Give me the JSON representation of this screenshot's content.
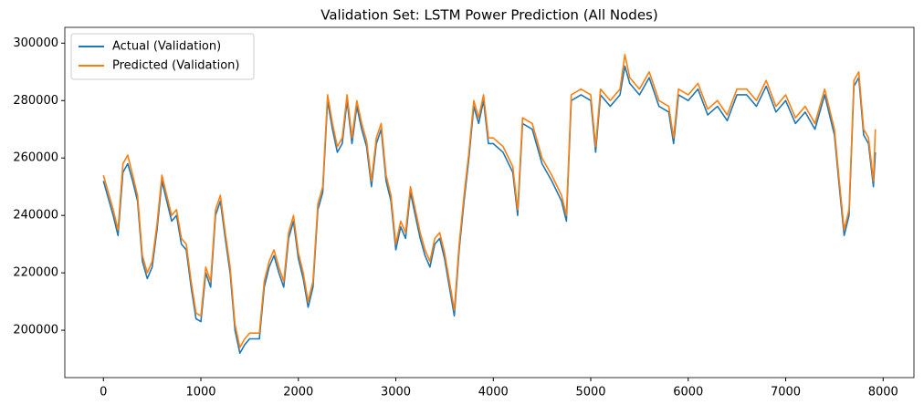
{
  "chart_data": {
    "type": "line",
    "title": "Validation Set: LSTM Power Prediction (All Nodes)",
    "x": [
      0,
      100,
      150,
      200,
      250,
      300,
      350,
      400,
      450,
      500,
      550,
      600,
      650,
      700,
      750,
      800,
      850,
      900,
      950,
      1000,
      1050,
      1100,
      1150,
      1200,
      1250,
      1300,
      1350,
      1400,
      1450,
      1500,
      1600,
      1650,
      1700,
      1750,
      1800,
      1850,
      1900,
      1950,
      2000,
      2050,
      2100,
      2150,
      2200,
      2250,
      2300,
      2350,
      2400,
      2450,
      2500,
      2550,
      2600,
      2650,
      2700,
      2750,
      2800,
      2850,
      2900,
      2950,
      3000,
      3050,
      3100,
      3150,
      3200,
      3250,
      3300,
      3350,
      3400,
      3450,
      3500,
      3550,
      3600,
      3650,
      3700,
      3750,
      3800,
      3850,
      3900,
      3950,
      4000,
      4100,
      4200,
      4250,
      4300,
      4400,
      4500,
      4600,
      4700,
      4750,
      4800,
      4900,
      5000,
      5050,
      5100,
      5200,
      5300,
      5350,
      5400,
      5500,
      5600,
      5700,
      5800,
      5850,
      5900,
      6000,
      6100,
      6200,
      6300,
      6400,
      6500,
      6600,
      6700,
      6800,
      6900,
      7000,
      7100,
      7200,
      7300,
      7400,
      7500,
      7550,
      7600,
      7650,
      7700,
      7750,
      7800,
      7850,
      7900,
      7920
    ],
    "series": [
      {
        "name": "Actual (Validation)",
        "color": "#1f77b4",
        "values": [
          252000,
          240000,
          233000,
          255000,
          258000,
          252000,
          245000,
          224000,
          218000,
          222000,
          235000,
          252000,
          245000,
          238000,
          240000,
          230000,
          228000,
          215000,
          204000,
          203000,
          220000,
          215000,
          240000,
          245000,
          232000,
          220000,
          200000,
          192000,
          195000,
          197000,
          197000,
          215000,
          222000,
          226000,
          220000,
          215000,
          232000,
          238000,
          225000,
          218000,
          208000,
          215000,
          242000,
          248000,
          280000,
          270000,
          262000,
          265000,
          280000,
          265000,
          278000,
          270000,
          264000,
          250000,
          265000,
          270000,
          252000,
          245000,
          228000,
          236000,
          232000,
          248000,
          240000,
          232000,
          226000,
          222000,
          230000,
          232000,
          225000,
          215000,
          205000,
          228000,
          245000,
          260000,
          278000,
          272000,
          280000,
          265000,
          265000,
          262000,
          255000,
          240000,
          272000,
          270000,
          258000,
          252000,
          245000,
          238000,
          280000,
          282000,
          280000,
          262000,
          282000,
          278000,
          282000,
          292000,
          286000,
          282000,
          288000,
          278000,
          276000,
          265000,
          282000,
          280000,
          284000,
          275000,
          278000,
          273000,
          282000,
          282000,
          278000,
          285000,
          276000,
          280000,
          272000,
          276000,
          270000,
          282000,
          268000,
          250000,
          233000,
          240000,
          285000,
          288000,
          268000,
          265000,
          250000,
          262000
        ]
      },
      {
        "name": "Predicted (Validation)",
        "color": "#ff7f0e",
        "values": [
          254000,
          242000,
          235000,
          258000,
          261000,
          254000,
          247000,
          226000,
          220000,
          224000,
          237000,
          254000,
          247000,
          240000,
          242000,
          232000,
          230000,
          217000,
          206000,
          205000,
          222000,
          217000,
          242000,
          247000,
          234000,
          222000,
          202000,
          194000,
          197000,
          199000,
          199000,
          217000,
          224000,
          228000,
          222000,
          217000,
          234000,
          240000,
          227000,
          220000,
          210000,
          217000,
          244000,
          250000,
          282000,
          272000,
          264000,
          267000,
          282000,
          267000,
          280000,
          272000,
          266000,
          252000,
          267000,
          272000,
          254000,
          247000,
          230000,
          238000,
          234000,
          250000,
          242000,
          234000,
          228000,
          224000,
          232000,
          234000,
          227000,
          217000,
          207000,
          230000,
          247000,
          262000,
          280000,
          274000,
          282000,
          267000,
          267000,
          264000,
          257000,
          242000,
          274000,
          272000,
          260000,
          254000,
          247000,
          240000,
          282000,
          284000,
          282000,
          264000,
          284000,
          280000,
          284000,
          296000,
          288000,
          284000,
          290000,
          280000,
          278000,
          267000,
          284000,
          282000,
          286000,
          277000,
          280000,
          275000,
          284000,
          284000,
          280000,
          287000,
          278000,
          282000,
          274000,
          278000,
          272000,
          284000,
          270000,
          252000,
          235000,
          242000,
          287000,
          290000,
          270000,
          267000,
          252000,
          270000
        ]
      }
    ],
    "xlim": [
      -396,
      8316
    ],
    "xticks": [
      0,
      1000,
      2000,
      3000,
      4000,
      5000,
      6000,
      7000,
      8000
    ],
    "ylim": [
      183500,
      305500
    ],
    "yticks": [
      200000,
      220000,
      240000,
      260000,
      280000,
      300000
    ],
    "legend": "upper left"
  }
}
